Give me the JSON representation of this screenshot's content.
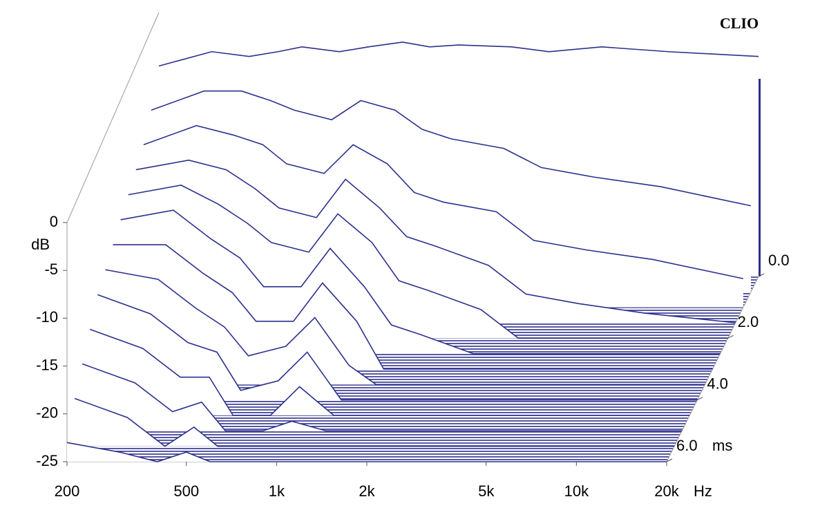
{
  "chart_data": {
    "type": "waterfall",
    "brand": "CLIO",
    "y_label": "dB",
    "x_unit": "Hz",
    "z_unit": "ms",
    "color": "#2b2f8c",
    "xscale": "log",
    "xlim": [
      200,
      20000
    ],
    "ylim": [
      -25,
      0
    ],
    "zlim": [
      0,
      6
    ],
    "xticks": [
      200,
      500,
      {
        "value": 1000,
        "label": "1k"
      },
      {
        "value": 2000,
        "label": "2k"
      },
      {
        "value": 5000,
        "label": "5k"
      },
      {
        "value": 10000,
        "label": "10k"
      },
      {
        "value": 20000,
        "label": "20k"
      }
    ],
    "yticks": [
      0,
      -5,
      -10,
      -15,
      -20,
      -25
    ],
    "zticks": [
      {
        "value": 0,
        "label": "0.0"
      },
      {
        "value": 2,
        "label": "2.0"
      },
      {
        "value": 4,
        "label": "4.0"
      },
      {
        "value": 6,
        "label": "6.0"
      }
    ],
    "x": [
      200,
      300,
      400,
      500,
      600,
      800,
      1000,
      1300,
      1600,
      2000,
      3000,
      4000,
      6000,
      10000,
      20000
    ],
    "slices": [
      {
        "time": 0,
        "values": [
          -3,
          -1.5,
          -2,
          -1.5,
          -1,
          -1.5,
          -1,
          -0.5,
          -1,
          -0.8,
          -1,
          -1.5,
          -1,
          -1.5,
          -2
        ]
      },
      {
        "time": 0.5,
        "values": [
          -6,
          -4,
          -4,
          -5,
          -6,
          -7,
          -5,
          -6,
          -8,
          -9,
          -10,
          -12,
          -13,
          -14,
          -16
        ]
      },
      {
        "time": 1,
        "values": [
          -8,
          -6,
          -7,
          -8,
          -10,
          -11,
          -8,
          -10,
          -13,
          -14,
          -15,
          -18,
          -19,
          -20,
          -22
        ]
      },
      {
        "time": 1.5,
        "values": [
          -9,
          -8,
          -9,
          -11,
          -13,
          -14,
          -10,
          -13,
          -16,
          -17,
          -19,
          -22,
          -23,
          -24,
          -25
        ]
      },
      {
        "time": 2,
        "values": [
          -10,
          -9,
          -11,
          -13,
          -15,
          -16,
          -12,
          -15,
          -19,
          -20,
          -22,
          -25,
          -25,
          -25,
          -25
        ]
      },
      {
        "time": 2.5,
        "values": [
          -11,
          -10,
          -13,
          -15,
          -18,
          -18,
          -14,
          -18,
          -22,
          -23,
          -25,
          -25,
          -25,
          -25,
          -25
        ]
      },
      {
        "time": 3,
        "values": [
          -12,
          -12,
          -15,
          -17,
          -20,
          -20,
          -16,
          -20,
          -25,
          -25,
          -25,
          -25,
          -25,
          -25,
          -25
        ]
      },
      {
        "time": 3.5,
        "values": [
          -13,
          -14,
          -17,
          -19,
          -22,
          -21,
          -18,
          -23,
          -25,
          -25,
          -25,
          -25,
          -25,
          -25,
          -25
        ]
      },
      {
        "time": 4,
        "values": [
          -14,
          -16,
          -19,
          -20,
          -24,
          -23,
          -20,
          -25,
          -25,
          -25,
          -25,
          -25,
          -25,
          -25,
          -25
        ]
      },
      {
        "time": 4.5,
        "values": [
          -16,
          -18,
          -21,
          -21,
          -25,
          -25,
          -22,
          -25,
          -25,
          -25,
          -25,
          -25,
          -25,
          -25,
          -25
        ]
      },
      {
        "time": 5,
        "values": [
          -18,
          -20,
          -23,
          -22,
          -25,
          -25,
          -24,
          -25,
          -25,
          -25,
          -25,
          -25,
          -25,
          -25,
          -25
        ]
      },
      {
        "time": 5.5,
        "values": [
          -20,
          -22,
          -25,
          -23,
          -25,
          -25,
          -25,
          -25,
          -25,
          -25,
          -25,
          -25,
          -25,
          -25,
          -25
        ]
      },
      {
        "time": 6,
        "values": [
          -23,
          -24,
          -25,
          -24,
          -25,
          -25,
          -25,
          -25,
          -25,
          -25,
          -25,
          -25,
          -25,
          -25,
          -25
        ]
      }
    ]
  }
}
